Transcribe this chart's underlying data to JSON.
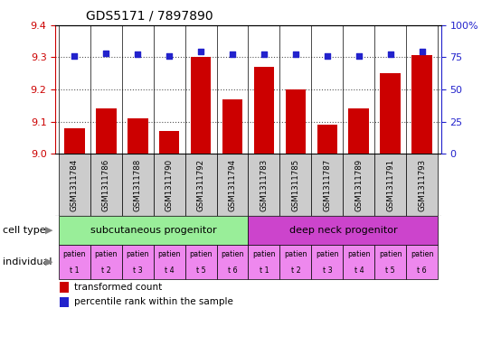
{
  "title": "GDS5171 / 7897890",
  "samples": [
    "GSM1311784",
    "GSM1311786",
    "GSM1311788",
    "GSM1311790",
    "GSM1311792",
    "GSM1311794",
    "GSM1311783",
    "GSM1311785",
    "GSM1311787",
    "GSM1311789",
    "GSM1311791",
    "GSM1311793"
  ],
  "bar_values": [
    9.08,
    9.14,
    9.11,
    9.07,
    9.3,
    9.17,
    9.27,
    9.2,
    9.09,
    9.14,
    9.25,
    9.305
  ],
  "percentile_values": [
    76,
    78,
    77,
    76,
    79,
    77,
    77,
    77,
    76,
    76,
    77,
    79
  ],
  "ylim_left": [
    9.0,
    9.4
  ],
  "ylim_right": [
    0,
    100
  ],
  "yticks_left": [
    9.0,
    9.1,
    9.2,
    9.3,
    9.4
  ],
  "yticks_right": [
    0,
    25,
    50,
    75,
    100
  ],
  "bar_color": "#cc0000",
  "dot_color": "#2222cc",
  "cell_type_groups": [
    {
      "label": "subcutaneous progenitor",
      "start": 0,
      "end": 6,
      "color": "#99ee99"
    },
    {
      "label": "deep neck progenitor",
      "start": 6,
      "end": 12,
      "color": "#cc44cc"
    }
  ],
  "individual_labels": [
    "t 1",
    "t 2",
    "t 3",
    "t 4",
    "t 5",
    "t 6",
    "t 1",
    "t 2",
    "t 3",
    "t 4",
    "t 5",
    "t 6"
  ],
  "individual_color": "#ee88ee",
  "xticklabel_bg": "#cccccc",
  "legend_items": [
    {
      "color": "#cc0000",
      "label": "transformed count"
    },
    {
      "color": "#2222cc",
      "label": "percentile rank within the sample"
    }
  ],
  "right_axis_color": "#2222cc",
  "left_axis_color": "#cc0000",
  "grid_color": "#555555"
}
